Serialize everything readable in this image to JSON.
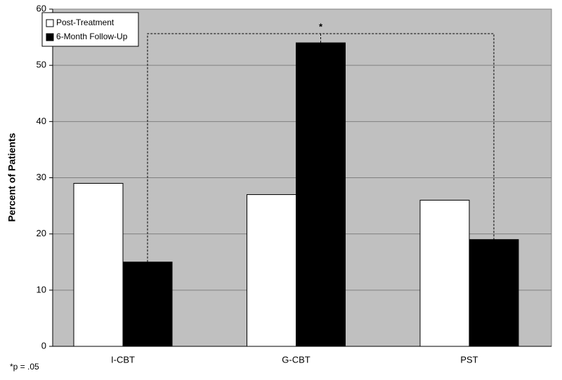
{
  "chart_data": {
    "type": "bar",
    "y_label": "Percent of Patients",
    "categories": [
      "I-CBT",
      "G-CBT",
      "PST"
    ],
    "series": [
      {
        "name": "Post-Treatment",
        "color": "#ffffff",
        "values": [
          29,
          27,
          26
        ]
      },
      {
        "name": "6-Month Follow-Up",
        "color": "#000000",
        "values": [
          15,
          54,
          19
        ]
      }
    ],
    "ylim": [
      0,
      60
    ],
    "yticks": [
      0,
      10,
      20,
      30,
      40,
      50,
      60
    ],
    "grid": true,
    "legend": "top-left",
    "annotation": "*",
    "footnote": "*p = .05"
  }
}
